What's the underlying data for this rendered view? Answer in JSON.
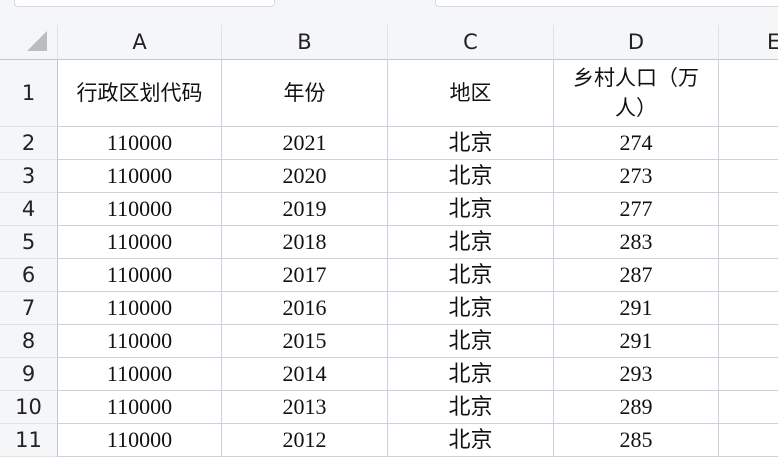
{
  "columns": [
    "A",
    "B",
    "C",
    "D",
    "E"
  ],
  "header_row": {
    "row": "1",
    "cells": [
      "行政区划代码",
      "年份",
      "地区",
      "乡村人口（万人）",
      ""
    ]
  },
  "rows": [
    {
      "row": "2",
      "cells": [
        "110000",
        "2021",
        "北京",
        "274"
      ]
    },
    {
      "row": "3",
      "cells": [
        "110000",
        "2020",
        "北京",
        "273"
      ]
    },
    {
      "row": "4",
      "cells": [
        "110000",
        "2019",
        "北京",
        "277"
      ]
    },
    {
      "row": "5",
      "cells": [
        "110000",
        "2018",
        "北京",
        "283"
      ]
    },
    {
      "row": "6",
      "cells": [
        "110000",
        "2017",
        "北京",
        "287"
      ]
    },
    {
      "row": "7",
      "cells": [
        "110000",
        "2016",
        "北京",
        "291"
      ]
    },
    {
      "row": "8",
      "cells": [
        "110000",
        "2015",
        "北京",
        "291"
      ]
    },
    {
      "row": "9",
      "cells": [
        "110000",
        "2014",
        "北京",
        "293"
      ]
    },
    {
      "row": "10",
      "cells": [
        "110000",
        "2013",
        "北京",
        "289"
      ]
    },
    {
      "row": "11",
      "cells": [
        "110000",
        "2012",
        "北京",
        "285"
      ]
    }
  ]
}
